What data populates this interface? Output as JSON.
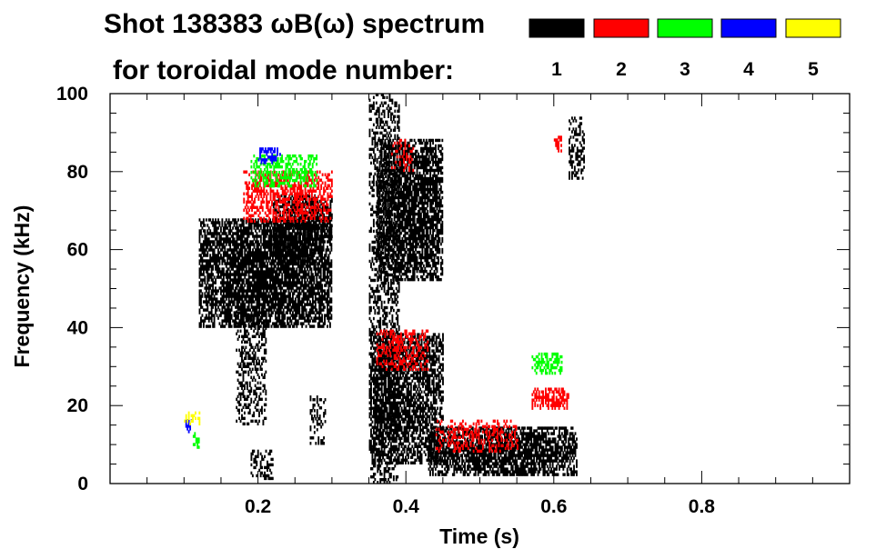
{
  "chart_data": {
    "type": "heatmap",
    "title": "Shot 138383 ωB(ω) spectrum",
    "subtitle": "for toroidal mode number:",
    "xlabel": "Time (s)",
    "ylabel": "Frequency (kHz)",
    "xlim": [
      0.0,
      1.0
    ],
    "ylim": [
      0,
      100
    ],
    "xticks": [
      0.2,
      0.4,
      0.6,
      0.8
    ],
    "xtick_labels": [
      "0.2",
      "0.4",
      "0.6",
      "0.8"
    ],
    "yticks": [
      0,
      20,
      40,
      60,
      80,
      100
    ],
    "ytick_labels": [
      "0",
      "20",
      "40",
      "60",
      "80",
      "100"
    ],
    "grid": false,
    "legend_placement": "top-right",
    "legend": [
      {
        "mode": "1",
        "color": "#000000"
      },
      {
        "mode": "2",
        "color": "#ff0000"
      },
      {
        "mode": "3",
        "color": "#00ff00"
      },
      {
        "mode": "4",
        "color": "#0000ff"
      },
      {
        "mode": "5",
        "color": "#ffff00"
      }
    ],
    "regions": [
      {
        "mode": 1,
        "t": [
          0.12,
          0.3
        ],
        "f": [
          40,
          68
        ],
        "density": 0.85
      },
      {
        "mode": 1,
        "t": [
          0.17,
          0.21
        ],
        "f": [
          15,
          45
        ],
        "density": 0.45
      },
      {
        "mode": 1,
        "t": [
          0.22,
          0.28
        ],
        "f": [
          56,
          74
        ],
        "density": 0.75
      },
      {
        "mode": 1,
        "t": [
          0.27,
          0.3
        ],
        "f": [
          63,
          73
        ],
        "density": 0.65
      },
      {
        "mode": 1,
        "t": [
          0.35,
          0.39
        ],
        "f": [
          0,
          100
        ],
        "density": 0.45
      },
      {
        "mode": 1,
        "t": [
          0.36,
          0.45
        ],
        "f": [
          52,
          88
        ],
        "density": 0.85
      },
      {
        "mode": 1,
        "t": [
          0.35,
          0.45
        ],
        "f": [
          5,
          38
        ],
        "density": 0.7
      },
      {
        "mode": 1,
        "t": [
          0.43,
          0.63
        ],
        "f": [
          2,
          14
        ],
        "density": 0.85
      },
      {
        "mode": 1,
        "t": [
          0.62,
          0.64
        ],
        "f": [
          78,
          94
        ],
        "density": 0.5
      },
      {
        "mode": 1,
        "t": [
          0.19,
          0.22
        ],
        "f": [
          1,
          8
        ],
        "density": 0.4
      },
      {
        "mode": 1,
        "t": [
          0.27,
          0.29
        ],
        "f": [
          10,
          22
        ],
        "density": 0.4
      },
      {
        "mode": 2,
        "t": [
          0.18,
          0.3
        ],
        "f": [
          67,
          80
        ],
        "density": 0.55
      },
      {
        "mode": 2,
        "t": [
          0.36,
          0.43
        ],
        "f": [
          29,
          39
        ],
        "density": 0.45
      },
      {
        "mode": 2,
        "t": [
          0.57,
          0.62
        ],
        "f": [
          19,
          24
        ],
        "density": 0.65
      },
      {
        "mode": 2,
        "t": [
          0.44,
          0.55
        ],
        "f": [
          8,
          16
        ],
        "density": 0.4
      },
      {
        "mode": 2,
        "t": [
          0.6,
          0.61
        ],
        "f": [
          85,
          89
        ],
        "density": 0.7
      },
      {
        "mode": 2,
        "t": [
          0.38,
          0.41
        ],
        "f": [
          80,
          88
        ],
        "density": 0.3
      },
      {
        "mode": 3,
        "t": [
          0.19,
          0.28
        ],
        "f": [
          76,
          84
        ],
        "density": 0.55
      },
      {
        "mode": 3,
        "t": [
          0.57,
          0.61
        ],
        "f": [
          28,
          33
        ],
        "density": 0.6
      },
      {
        "mode": 3,
        "t": [
          0.11,
          0.12
        ],
        "f": [
          9,
          13
        ],
        "density": 0.6
      },
      {
        "mode": 4,
        "t": [
          0.2,
          0.23
        ],
        "f": [
          82,
          86
        ],
        "density": 0.5
      },
      {
        "mode": 4,
        "t": [
          0.1,
          0.11
        ],
        "f": [
          13,
          16
        ],
        "density": 0.6
      },
      {
        "mode": 5,
        "t": [
          0.1,
          0.12
        ],
        "f": [
          15,
          18
        ],
        "density": 0.4
      }
    ]
  }
}
